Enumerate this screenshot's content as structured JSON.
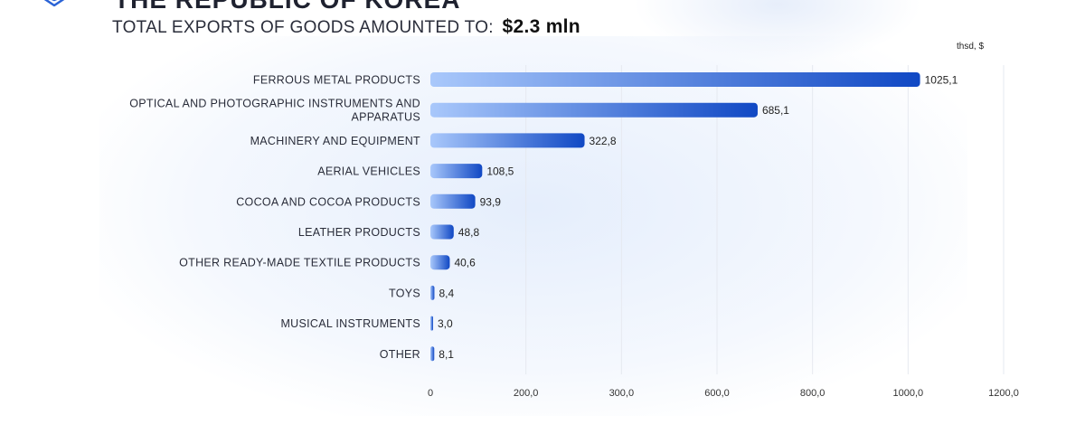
{
  "header": {
    "title": "THE REPUBLIC OF KOREA",
    "subtitle_prefix": "TOTAL EXPORTS OF GOODS AMOUNTED TO:",
    "subtitle_total": "$2.3 mln"
  },
  "colors": {
    "bar_start": "#a9c8fb",
    "bar_end": "#1048c4",
    "gridline": "#e6e9f0",
    "logo": "#2a63d6"
  },
  "icons": {
    "logo": "cube-logo-icon"
  },
  "chart_data": {
    "type": "bar",
    "orientation": "horizontal",
    "unit": "thsd, $",
    "categories": [
      "FERROUS METAL PRODUCTS",
      "OPTICAL AND PHOTOGRAPHIC INSTRUMENTS AND APPARATUS",
      "MACHINERY AND EQUIPMENT",
      "AERIAL VEHICLES",
      "COCOA AND COCOA PRODUCTS",
      "LEATHER PRODUCTS",
      "OTHER READY-MADE TEXTILE PRODUCTS",
      "TOYS",
      "MUSICAL INSTRUMENTS",
      "OTHER"
    ],
    "category_lines": [
      [
        "FERROUS METAL PRODUCTS"
      ],
      [
        "OPTICAL AND PHOTOGRAPHIC INSTRUMENTS AND",
        "APPARATUS"
      ],
      [
        "MACHINERY AND EQUIPMENT"
      ],
      [
        "AERIAL VEHICLES"
      ],
      [
        "COCOA AND COCOA PRODUCTS"
      ],
      [
        "LEATHER PRODUCTS"
      ],
      [
        "OTHER READY-MADE TEXTILE PRODUCTS"
      ],
      [
        "TOYS"
      ],
      [
        "MUSICAL INSTRUMENTS"
      ],
      [
        "OTHER"
      ]
    ],
    "values": [
      1025.1,
      685.1,
      322.8,
      108.5,
      93.9,
      48.8,
      40.6,
      8.4,
      3.0,
      8.1
    ],
    "value_labels": [
      "1025,1",
      "685,1",
      "322,8",
      "108,5",
      "93,9",
      "48,8",
      "40,6",
      "8,4",
      "3,0",
      "8,1"
    ],
    "xticks": [
      0,
      200,
      300,
      600,
      800,
      1000,
      1200
    ],
    "xtick_labels": [
      "0",
      "200,0",
      "300,0",
      "600,0",
      "800,0",
      "1000,0",
      "1200,0"
    ],
    "xlim": [
      0,
      1200
    ],
    "grid": true
  }
}
